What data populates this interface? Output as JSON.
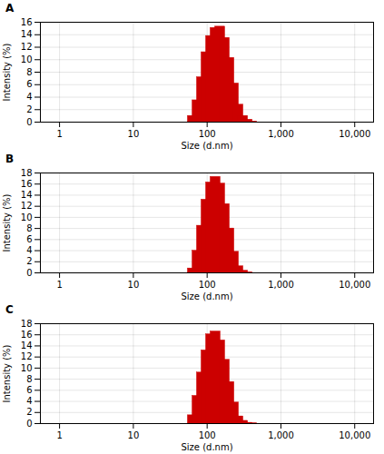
{
  "chart_data": [
    {
      "type": "bar",
      "title": "A",
      "x": [
        64,
        74,
        85,
        98,
        113,
        130,
        150,
        173,
        200,
        230,
        265,
        306,
        353,
        407
      ],
      "values": [
        1.0,
        3.5,
        7.2,
        11.2,
        13.8,
        15.1,
        15.3,
        13.5,
        10.3,
        6.2,
        2.8,
        1.0,
        0.4,
        0.1
      ],
      "color": "#CC0000",
      "xlabel": "Size (d.nm)",
      "ylabel": "Intensity (%)",
      "log": "x",
      "xlim": [
        0.55,
        18000
      ],
      "xticks": [
        1,
        10,
        100,
        {
          "value": 1000,
          "label": "1,000"
        },
        {
          "value": 10000,
          "label": "10,000"
        }
      ],
      "ylim": [
        0,
        16
      ],
      "yticks": [
        0,
        2,
        4,
        6,
        8,
        10,
        12,
        14,
        16
      ],
      "grid": true
    },
    {
      "type": "bar",
      "title": "B",
      "x": [
        64,
        74,
        85,
        98,
        113,
        130,
        150,
        173,
        200,
        230,
        265,
        306,
        353
      ],
      "values": [
        0.8,
        4.0,
        8.5,
        13.2,
        16.3,
        17.3,
        16.1,
        12.4,
        8.0,
        3.8,
        1.2,
        0.4,
        0.1
      ],
      "color": "#CC0000",
      "xlabel": "Size (d.nm)",
      "ylabel": "Intensity (%)",
      "log": "x",
      "xlim": [
        0.55,
        18000
      ],
      "xticks": [
        1,
        10,
        100,
        {
          "value": 1000,
          "label": "1,000"
        },
        {
          "value": 10000,
          "label": "10,000"
        }
      ],
      "ylim": [
        0,
        18
      ],
      "yticks": [
        0,
        2,
        4,
        6,
        8,
        10,
        12,
        14,
        16,
        18
      ],
      "grid": true
    },
    {
      "type": "bar",
      "title": "C",
      "x": [
        64,
        74,
        85,
        98,
        113,
        130,
        150,
        173,
        200,
        230,
        265,
        306,
        353,
        407
      ],
      "values": [
        1.5,
        5.0,
        9.2,
        13.2,
        16.1,
        16.6,
        15.0,
        11.5,
        7.5,
        3.8,
        1.3,
        0.5,
        0.15,
        0.05
      ],
      "color": "#CC0000",
      "xlabel": "Size (d.nm)",
      "ylabel": "Intensity (%)",
      "log": "x",
      "xlim": [
        0.55,
        18000
      ],
      "xticks": [
        1,
        10,
        100,
        {
          "value": 1000,
          "label": "1,000"
        },
        {
          "value": 10000,
          "label": "10,000"
        }
      ],
      "ylim": [
        0,
        18
      ],
      "yticks": [
        0,
        2,
        4,
        6,
        8,
        10,
        12,
        14,
        16,
        18
      ],
      "grid": true
    }
  ]
}
